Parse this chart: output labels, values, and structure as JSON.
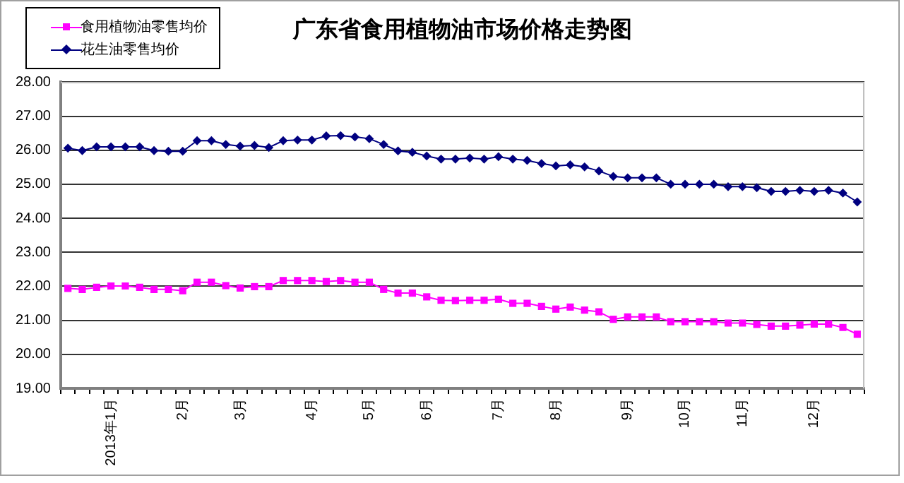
{
  "chart_data": {
    "type": "line",
    "title": "广东省食用植物油市场价格走势图",
    "categories": [
      null,
      null,
      null,
      "2013年1月",
      null,
      null,
      null,
      null,
      "2月",
      null,
      null,
      null,
      "3月",
      null,
      null,
      null,
      null,
      "4月",
      null,
      null,
      null,
      "5月",
      null,
      null,
      null,
      "6月",
      null,
      null,
      null,
      null,
      "7月",
      null,
      null,
      null,
      "8月",
      null,
      null,
      null,
      null,
      "9月",
      null,
      null,
      null,
      "10月",
      null,
      null,
      null,
      "11月",
      null,
      null,
      null,
      null,
      "12月",
      null,
      null,
      null
    ],
    "series": [
      {
        "name": "食用植物油零售均价",
        "color": "#ff00ff",
        "marker": "square",
        "values": [
          21.94,
          21.91,
          21.97,
          22.01,
          22.01,
          21.97,
          21.91,
          21.91,
          21.87,
          22.12,
          22.12,
          22.02,
          21.95,
          21.99,
          21.99,
          22.17,
          22.17,
          22.17,
          22.14,
          22.17,
          22.12,
          22.12,
          21.91,
          21.8,
          21.8,
          21.69,
          21.59,
          21.58,
          21.59,
          21.59,
          21.62,
          21.5,
          21.5,
          21.41,
          21.33,
          21.39,
          21.3,
          21.25,
          21.03,
          21.1,
          21.1,
          21.1,
          20.96,
          20.96,
          20.96,
          20.96,
          20.92,
          20.92,
          20.88,
          20.83,
          20.83,
          20.86,
          20.89,
          20.89,
          20.79,
          20.59
        ]
      },
      {
        "name": "花生油零售均价",
        "color": "#000080",
        "marker": "diamond",
        "values": [
          26.06,
          25.99,
          26.1,
          26.1,
          26.1,
          26.1,
          25.99,
          25.97,
          25.97,
          26.28,
          26.28,
          26.17,
          26.12,
          26.14,
          26.08,
          26.28,
          26.3,
          26.3,
          26.42,
          26.43,
          26.39,
          26.34,
          26.17,
          25.98,
          25.94,
          25.83,
          25.74,
          25.74,
          25.77,
          25.74,
          25.81,
          25.74,
          25.7,
          25.61,
          25.54,
          25.57,
          25.51,
          25.39,
          25.23,
          25.19,
          25.19,
          25.19,
          25.0,
          25.0,
          25.0,
          25.0,
          24.93,
          24.93,
          24.9,
          24.79,
          24.79,
          24.82,
          24.79,
          24.82,
          24.74,
          24.48
        ]
      }
    ],
    "ylim": [
      19,
      28
    ],
    "yticks": [
      {
        "value": 19,
        "label": "19.00"
      },
      {
        "value": 20,
        "label": "20.00"
      },
      {
        "value": 21,
        "label": "21.00"
      },
      {
        "value": 22,
        "label": "22.00"
      },
      {
        "value": 23,
        "label": "23.00"
      },
      {
        "value": 24,
        "label": "24.00"
      },
      {
        "value": 25,
        "label": "25.00"
      },
      {
        "value": 26,
        "label": "26.00"
      },
      {
        "value": 27,
        "label": "27.00"
      },
      {
        "value": 28,
        "label": "28.00"
      }
    ],
    "grid": "y",
    "legend": "top left"
  }
}
